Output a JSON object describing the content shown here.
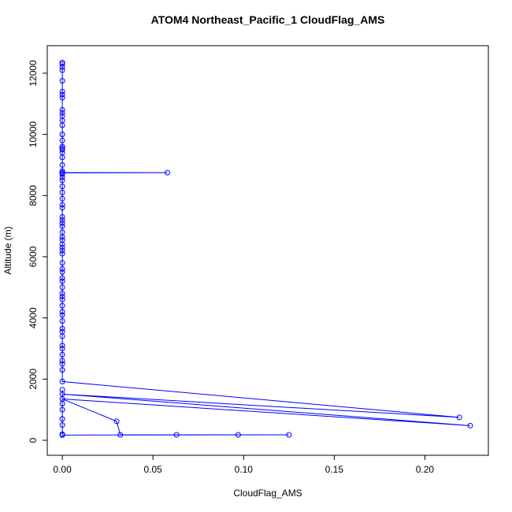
{
  "chart_data": {
    "type": "line",
    "title": "ATOM4 Northeast_Pacific_1 CloudFlag_AMS",
    "xlabel": "CloudFlag_AMS",
    "ylabel": "Altitude (m)",
    "color": "#0000ff",
    "markers": true,
    "xlim": [
      -0.0083,
      0.235
    ],
    "ylim": [
      -490,
      12900
    ],
    "xticks": [
      {
        "value": 0,
        "label": "0.00"
      },
      {
        "value": 0.05,
        "label": "0.05"
      },
      {
        "value": 0.1,
        "label": "0.10"
      },
      {
        "value": 0.15,
        "label": "0.15"
      },
      {
        "value": 0.2,
        "label": "0.20"
      }
    ],
    "yticks": [
      0,
      2000,
      4000,
      6000,
      8000,
      10000,
      12000
    ],
    "x": [
      0,
      0,
      0,
      0,
      0,
      0,
      0,
      0,
      0,
      0,
      0,
      0,
      0,
      0,
      0,
      0,
      0,
      0,
      0,
      0,
      0,
      0,
      0,
      0.058,
      0,
      0,
      0,
      0,
      0,
      0,
      0,
      0,
      0,
      0,
      0,
      0,
      0,
      0,
      0,
      0,
      0,
      0,
      0,
      0,
      0,
      0,
      0,
      0,
      0,
      0,
      0,
      0,
      0,
      0,
      0,
      0,
      0,
      0,
      0,
      0,
      0,
      0,
      0,
      0,
      0,
      0,
      0,
      0.219,
      0,
      0.225,
      0,
      0.03,
      0.032,
      0.063,
      0.097,
      0.125,
      0,
      0,
      0,
      0,
      0,
      0,
      0
    ],
    "y": [
      12350,
      12300,
      12200,
      12100,
      11750,
      11400,
      11300,
      11200,
      10800,
      10700,
      10600,
      10450,
      10300,
      10000,
      9800,
      9600,
      9550,
      9500,
      9400,
      9250,
      9000,
      8800,
      8750,
      8750,
      8740,
      8700,
      8600,
      8500,
      8300,
      8100,
      7900,
      7700,
      7600,
      7300,
      7200,
      7100,
      7000,
      6800,
      6650,
      6550,
      6400,
      6300,
      6200,
      6100,
      5800,
      5600,
      5500,
      5300,
      5200,
      5000,
      4800,
      4700,
      4600,
      4400,
      4200,
      4100,
      3900,
      3650,
      3550,
      3400,
      3100,
      3000,
      2800,
      2600,
      2500,
      2300,
      1920,
      750,
      1510,
      480,
      1350,
      620,
      180,
      180,
      180,
      180,
      170,
      500,
      700,
      1000,
      1200,
      1650,
      200
    ]
  }
}
